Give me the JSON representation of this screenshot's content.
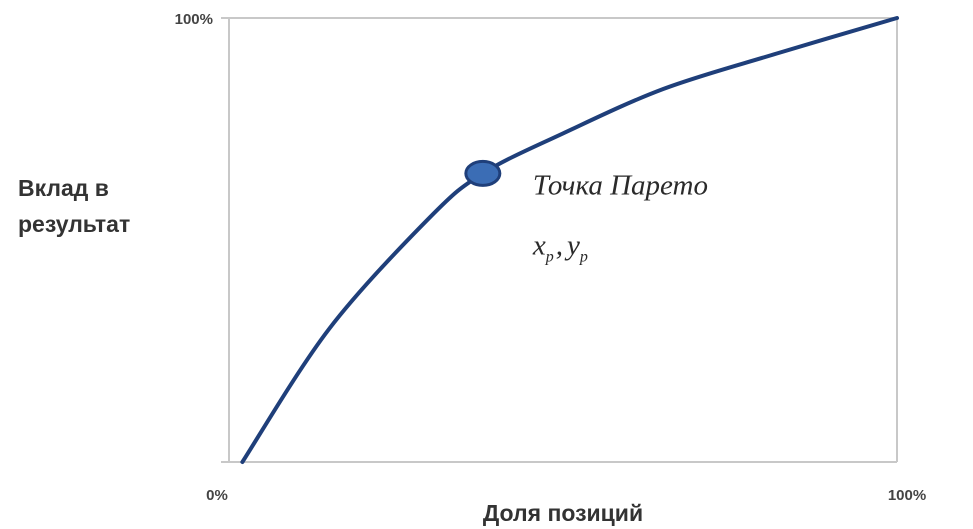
{
  "chart_data": {
    "type": "line",
    "xlabel": "Доля позиций",
    "ylabel_lines": [
      "Вклад в",
      "результат"
    ],
    "x_ticks": [
      "0%",
      "100%"
    ],
    "y_ticks": [
      "100%"
    ],
    "xlim": [
      0,
      100
    ],
    "ylim": [
      0,
      100
    ],
    "grid": false,
    "series": [
      {
        "color": "#1f3f7a",
        "x": [
          2,
          15,
          30,
          38,
          50,
          65,
          82,
          100
        ],
        "y": [
          0,
          30,
          55,
          65,
          74,
          84,
          92,
          100
        ]
      }
    ],
    "pareto_point": {
      "x": 38,
      "y": 65,
      "label": "Точка Парето",
      "coord_label": {
        "x_symbol": "x",
        "x_sub": "p",
        "separator": ",",
        "y_symbol": "y",
        "y_sub": "p"
      },
      "marker_color": "#3b6db5",
      "marker_stroke": "#1f3f7a"
    },
    "axis_color": "#c8c8c8"
  }
}
